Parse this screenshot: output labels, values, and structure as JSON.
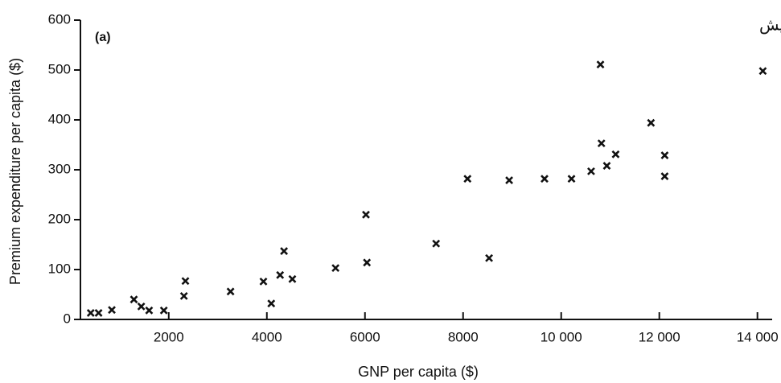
{
  "chart_data": {
    "type": "scatter",
    "annotation": "توموبیل‌رانی، دریانوردی و سفر افزایش",
    "panel_label": "(a)",
    "xlabel": "GNP per capita ($)",
    "ylabel": "Premium expenditure per capita ($)",
    "xlim": [
      200,
      14300
    ],
    "ylim": [
      0,
      600
    ],
    "xticks": [
      2000,
      4000,
      6000,
      8000,
      {
        "value": 10000,
        "label": "10 000"
      },
      {
        "value": 12000,
        "label": "12 000"
      },
      {
        "value": 14000,
        "label": "14 000"
      }
    ],
    "yticks": [
      0,
      100,
      200,
      300,
      400,
      500,
      600
    ],
    "color": "#111111",
    "x": [
      410,
      570,
      840,
      1290,
      1440,
      1600,
      1900,
      2310,
      2340,
      3260,
      3930,
      4090,
      4270,
      4350,
      4520,
      5400,
      6040,
      6020,
      7450,
      8090,
      8530,
      8940,
      9660,
      10210,
      10610,
      10820,
      10930,
      11110,
      10800,
      11830,
      12110,
      12110,
      14110
    ],
    "y": [
      13,
      13,
      19,
      40,
      26,
      18,
      18,
      47,
      77,
      56,
      76,
      32,
      89,
      137,
      81,
      103,
      114,
      210,
      152,
      282,
      123,
      279,
      282,
      282,
      297,
      353,
      308,
      331,
      511,
      394,
      287,
      329,
      498
    ]
  }
}
